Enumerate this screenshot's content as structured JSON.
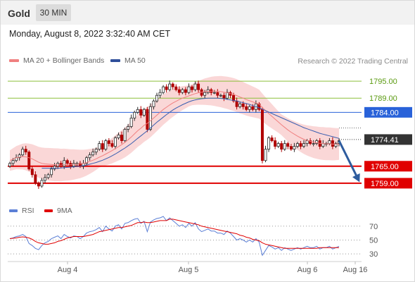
{
  "header": {
    "asset": "Gold",
    "timeframe": "30 MIN",
    "timestamp": "Monday, August 8, 2022 3:32:40 AM CET"
  },
  "legend": {
    "ma20": "MA 20 + Bollinger Bands",
    "ma50": "MA 50",
    "ma20_color": "#f08080",
    "ma50_color": "#3a5fb0",
    "credit": "Research © 2022 Trading Central"
  },
  "rsi_legend": {
    "rsi": "RSI",
    "ma9": "9MA",
    "rsi_color": "#5b7fd6",
    "ma9_color": "#e00000"
  },
  "chart_data": {
    "type": "candlestick",
    "y_range": [
      1754,
      1800
    ],
    "x_ticks": [
      "Aug 4",
      "Aug 5",
      "Aug 6",
      "Aug 16"
    ],
    "levels": [
      {
        "value": 1795.0,
        "label": "1795.00",
        "color": "#8cbf3a",
        "style": "line"
      },
      {
        "value": 1789.0,
        "label": "1789.00",
        "color": "#8cbf3a",
        "style": "line"
      },
      {
        "value": 1784.0,
        "label": "1784.00",
        "color": "#2962d9",
        "style": "line"
      },
      {
        "value": 1774.41,
        "label": "1774.41",
        "color": "#333333",
        "style": "current"
      },
      {
        "value": 1765.0,
        "label": "1765.00",
        "color": "#e00000",
        "style": "line"
      },
      {
        "value": 1759.0,
        "label": "1759.00",
        "color": "#e00000",
        "style": "line"
      }
    ],
    "close": [
      1766,
      1767,
      1768,
      1769,
      1771,
      1770,
      1764,
      1762,
      1759,
      1758,
      1760,
      1761,
      1762,
      1764,
      1765,
      1766,
      1765,
      1767,
      1766,
      1765,
      1766,
      1766,
      1765,
      1766,
      1768,
      1769,
      1770,
      1771,
      1773,
      1771,
      1774,
      1773,
      1772,
      1775,
      1776,
      1774,
      1778,
      1779,
      1782,
      1784,
      1785,
      1783,
      1785,
      1778,
      1786,
      1788,
      1790,
      1791,
      1793,
      1792,
      1794,
      1793,
      1792,
      1791,
      1792,
      1791,
      1793,
      1792,
      1794,
      1792,
      1790,
      1791,
      1792,
      1791,
      1791,
      1790,
      1790,
      1789,
      1791,
      1790,
      1788,
      1786,
      1787,
      1786,
      1785,
      1786,
      1785,
      1787,
      1785,
      1767,
      1771,
      1775,
      1774,
      1772,
      1773,
      1771,
      1773,
      1772,
      1771,
      1772,
      1773,
      1772,
      1773,
      1774,
      1773,
      1773,
      1774,
      1772,
      1773,
      1773,
      1774,
      1772,
      1773,
      1774
    ],
    "ma20": [
      1767,
      1767.5,
      1768,
      1768.2,
      1768.4,
      1768.3,
      1768,
      1767.6,
      1767,
      1766.4,
      1766,
      1765.8,
      1765.7,
      1765.6,
      1765.5,
      1765.5,
      1765.4,
      1765.5,
      1765.5,
      1765.5,
      1765.6,
      1765.7,
      1765.8,
      1766,
      1766.3,
      1766.7,
      1767.1,
      1767.6,
      1768.2,
      1768.7,
      1769.3,
      1769.9,
      1770.5,
      1771.2,
      1771.9,
      1772.6,
      1773.4,
      1774.3,
      1775.3,
      1776.4,
      1777.5,
      1778.4,
      1779.4,
      1780.1,
      1781,
      1782,
      1783,
      1784,
      1785,
      1785.8,
      1786.6,
      1787.3,
      1787.9,
      1788.5,
      1789,
      1789.4,
      1789.8,
      1790.2,
      1790.6,
      1790.9,
      1791.1,
      1791.3,
      1791.4,
      1791.5,
      1791.5,
      1791.4,
      1791.3,
      1791.1,
      1790.9,
      1790.6,
      1790.3,
      1789.9,
      1789.4,
      1789,
      1788.5,
      1788.1,
      1787.7,
      1787.3,
      1786.9,
      1785.7,
      1784.6,
      1783.6,
      1782.6,
      1781.6,
      1780.6,
      1779.6,
      1778.7,
      1777.8,
      1777,
      1776.3,
      1775.6,
      1775,
      1774.5,
      1774.1,
      1773.8,
      1773.5,
      1773.3,
      1773.1,
      1773,
      1772.9,
      1772.9,
      1772.8,
      1772.8,
      1772.8
    ],
    "ma50": [
      null,
      null,
      null,
      null,
      null,
      null,
      null,
      null,
      null,
      null,
      1764.3,
      1764.3,
      1764.3,
      1764.3,
      1764.3,
      1764.3,
      1764.4,
      1764.5,
      1764.6,
      1764.7,
      1764.8,
      1764.9,
      1765,
      1765.2,
      1765.4,
      1765.7,
      1766,
      1766.3,
      1766.7,
      1767.1,
      1767.6,
      1768.1,
      1768.7,
      1769.3,
      1770,
      1770.7,
      1771.4,
      1772.2,
      1773,
      1773.9,
      1774.8,
      1775.7,
      1776.6,
      1777.5,
      1778.5,
      1779.5,
      1780.5,
      1781.4,
      1782.3,
      1783.2,
      1784,
      1784.8,
      1785.5,
      1786.1,
      1786.7,
      1787.2,
      1787.7,
      1788.1,
      1788.4,
      1788.6,
      1788.8,
      1788.9,
      1789,
      1789,
      1789,
      1789,
      1788.9,
      1788.8,
      1788.6,
      1788.4,
      1788.2,
      1788,
      1787.7,
      1787.4,
      1787.1,
      1786.8,
      1786.4,
      1786,
      1785.6,
      1785.1,
      1784.6,
      1784.1,
      1783.6,
      1783.1,
      1782.6,
      1782.1,
      1781.6,
      1781.1,
      1780.6,
      1780.1,
      1779.6,
      1779.1,
      1778.6,
      1778.2,
      1777.8,
      1777.4,
      1777,
      1776.6,
      1776.3,
      1776,
      1775.7,
      1775.4,
      1775.1,
      1774.8
    ],
    "rsi": [
      52,
      53,
      55,
      56,
      58,
      55,
      45,
      42,
      38,
      36,
      42,
      46,
      48,
      52,
      54,
      56,
      52,
      58,
      55,
      53,
      56,
      55,
      52,
      55,
      60,
      62,
      63,
      65,
      68,
      62,
      70,
      66,
      63,
      70,
      72,
      66,
      74,
      75,
      78,
      80,
      81,
      74,
      77,
      62,
      76,
      79,
      81,
      82,
      84,
      78,
      82,
      78,
      74,
      70,
      72,
      68,
      74,
      70,
      75,
      66,
      62,
      64,
      66,
      63,
      63,
      60,
      60,
      58,
      63,
      60,
      55,
      50,
      52,
      50,
      47,
      50,
      47,
      52,
      47,
      28,
      35,
      42,
      40,
      37,
      39,
      35,
      39,
      37,
      35,
      37,
      39,
      37,
      39,
      41,
      39,
      39,
      41,
      37,
      39,
      39,
      41,
      37,
      39,
      41
    ],
    "rsi_ma9": [
      52,
      52.5,
      53,
      54,
      54.5,
      54,
      53,
      51,
      48,
      46,
      45,
      44,
      44,
      45,
      46,
      48,
      49,
      51,
      53,
      54,
      55,
      55,
      55,
      55,
      56,
      57,
      58,
      60,
      62,
      63,
      64,
      65,
      66,
      67,
      68,
      68,
      69,
      70,
      71,
      73,
      75,
      75,
      76,
      75,
      75,
      76,
      77,
      78,
      78,
      78,
      80,
      80,
      79,
      78,
      77,
      76,
      75,
      74,
      73,
      72,
      70,
      69,
      68,
      67,
      66,
      65,
      64,
      63,
      62,
      61,
      60,
      59,
      57,
      56,
      54,
      53,
      51,
      50,
      49,
      46,
      44,
      43,
      42,
      41,
      40,
      39,
      38,
      38,
      38,
      38,
      38,
      38,
      38,
      38,
      38,
      38,
      38,
      39,
      39,
      39,
      39,
      39,
      39,
      39
    ],
    "rsi_levels": [
      70,
      50,
      30
    ]
  }
}
